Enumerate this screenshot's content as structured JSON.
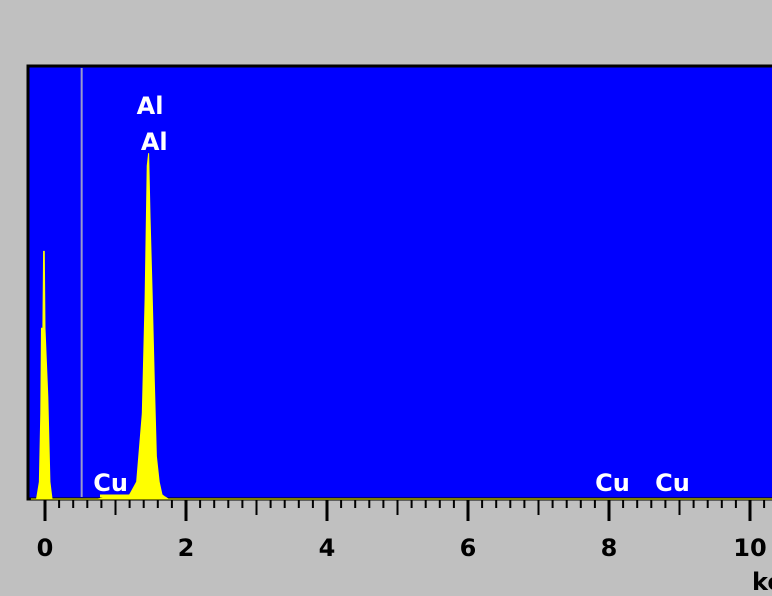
{
  "colors": {
    "background": "#c0c0c0",
    "plot_area": "#0000ff",
    "spectrum": "#ffff00",
    "marker_line": "#9a9acc",
    "label_text": "#ffffff",
    "axis": "#000000"
  },
  "chart_data": {
    "type": "area",
    "title": "",
    "xlabel": "ke",
    "ylabel": "",
    "xlim": [
      -0.25,
      10.5
    ],
    "ylim": [
      0,
      100
    ],
    "x_ticks": [
      0,
      2,
      4,
      6,
      8,
      10
    ],
    "x_tick_labels": [
      "0",
      "2",
      "4",
      "6",
      "8",
      "10"
    ],
    "grid": false,
    "marker_x": 0.52,
    "x": [
      -0.2,
      -0.12,
      -0.08,
      -0.06,
      -0.05,
      -0.04,
      -0.03,
      -0.02,
      -0.01,
      0.0,
      0.04,
      0.07,
      0.1,
      0.14,
      0.2,
      0.4,
      0.75,
      0.9,
      1.0,
      1.1,
      1.2,
      1.3,
      1.34,
      1.38,
      1.42,
      1.45,
      1.47,
      1.49,
      1.52,
      1.55,
      1.58,
      1.62,
      1.66,
      1.7,
      1.75,
      2.0,
      4.0,
      6.0,
      8.0,
      10.0,
      10.5
    ],
    "y": [
      0,
      0,
      4,
      20,
      40,
      40,
      40,
      58,
      58,
      40,
      24,
      4,
      0,
      0,
      0,
      0,
      0,
      0.5,
      0.5,
      0.5,
      1,
      4,
      12,
      20,
      47,
      78,
      81,
      66,
      48,
      28,
      10,
      4,
      1,
      0.5,
      0,
      0,
      0,
      0,
      0,
      0,
      0
    ],
    "annotations": [
      {
        "text": "Al",
        "x": 1.49,
        "row": 1
      },
      {
        "text": "Al",
        "x": 1.55,
        "row": 2
      },
      {
        "text": "Cu",
        "x": 0.93,
        "row": 3
      },
      {
        "text": "Cu",
        "x": 8.05,
        "row": 3
      },
      {
        "text": "Cu",
        "x": 8.9,
        "row": 3
      }
    ]
  }
}
